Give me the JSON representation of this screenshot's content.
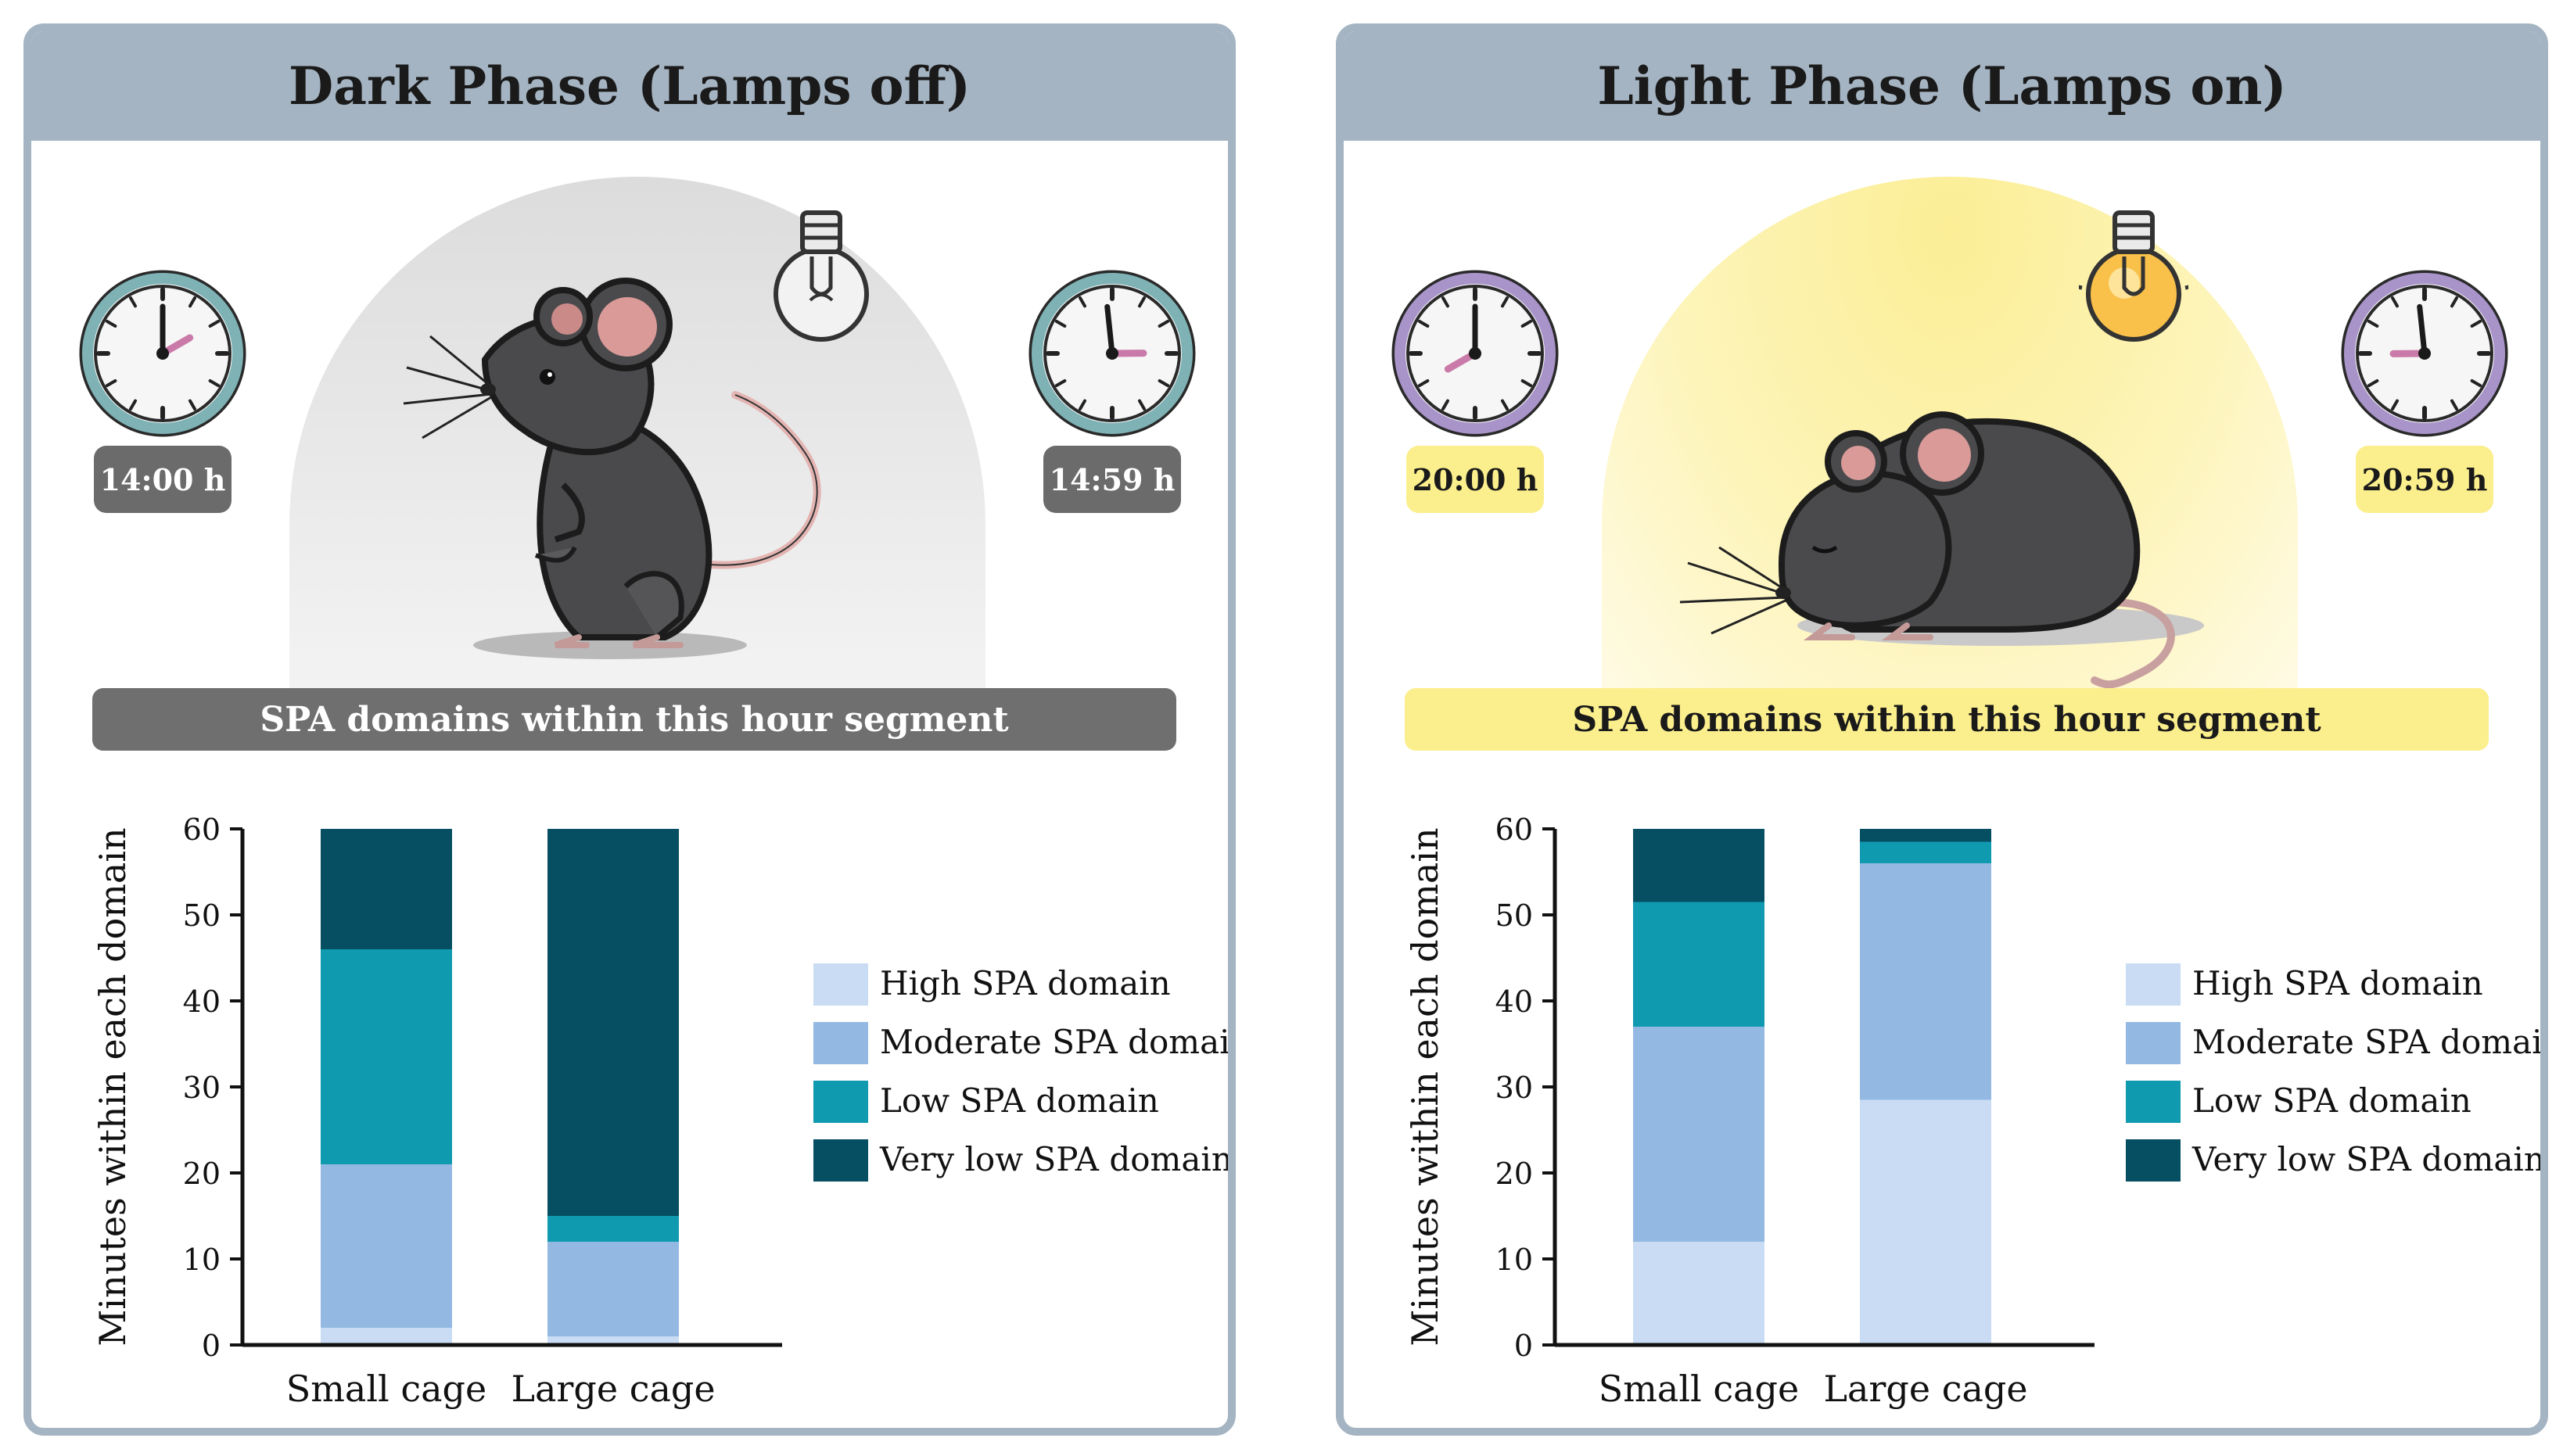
{
  "panels": [
    {
      "title": "Dark Phase (Lamps off)",
      "theme": "dark",
      "start_time": "14:00 h",
      "end_time": "14:59 h",
      "segment_label": "SPA domains within this hour segment",
      "start_clock": {
        "hour": 2,
        "minute": 0
      },
      "end_clock": {
        "hour": 2,
        "minute": 59
      },
      "lamp_on": false,
      "mouse_pose": "standing-awake"
    },
    {
      "title": "Light Phase (Lamps on)",
      "theme": "light",
      "start_time": "20:00 h",
      "end_time": "20:59 h",
      "segment_label": "SPA domains within this hour segment",
      "start_clock": {
        "hour": 8,
        "minute": 0
      },
      "end_clock": {
        "hour": 8,
        "minute": 59
      },
      "lamp_on": true,
      "mouse_pose": "curled-sleeping"
    }
  ],
  "colors": {
    "frame": "#a5b4c2",
    "high": "#c9dcf3",
    "moderate": "#93b9e3",
    "low": "#0f9ab0",
    "very_low": "#064f63",
    "dark_badge": "#6b6b6b",
    "light_badge": "#fbee8c"
  },
  "chart_data": [
    {
      "type": "bar",
      "stacked": true,
      "categories": [
        "Small cage",
        "Large cage"
      ],
      "ylabel": "Minutes within each domain",
      "xlabel": "",
      "ylim": [
        0,
        60
      ],
      "yticks": [
        0,
        10,
        20,
        30,
        40,
        50,
        60
      ],
      "legend_position": "right",
      "series": [
        {
          "name": "High SPA domain",
          "values": [
            2,
            1
          ]
        },
        {
          "name": "Moderate SPA domain",
          "values": [
            19,
            11
          ]
        },
        {
          "name": "Low SPA domain",
          "values": [
            25,
            3
          ]
        },
        {
          "name": "Very low SPA domain",
          "values": [
            14,
            45
          ]
        }
      ]
    },
    {
      "type": "bar",
      "stacked": true,
      "categories": [
        "Small cage",
        "Large cage"
      ],
      "ylabel": "Minutes within each domain",
      "xlabel": "",
      "ylim": [
        0,
        60
      ],
      "yticks": [
        0,
        10,
        20,
        30,
        40,
        50,
        60
      ],
      "legend_position": "right",
      "series": [
        {
          "name": "High SPA domain",
          "values": [
            12,
            28.5
          ]
        },
        {
          "name": "Moderate SPA domain",
          "values": [
            25,
            27.5
          ]
        },
        {
          "name": "Low SPA domain",
          "values": [
            14.5,
            2.5
          ]
        },
        {
          "name": "Very low SPA domain",
          "values": [
            8.5,
            1.5
          ]
        }
      ]
    }
  ]
}
